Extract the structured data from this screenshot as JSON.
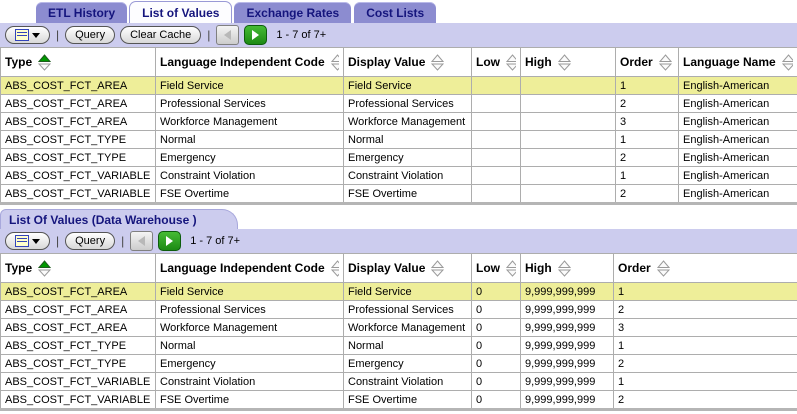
{
  "colors": {
    "tab_inactive_bg": "#8c8cd0",
    "tab_text": "#15157d",
    "toolbar_bg": "#ccccee",
    "row_highlight": "#eeee99",
    "sort_active_green": "#009900",
    "next_button_green": "#2a9a1e"
  },
  "tabs": [
    {
      "label": "ETL History",
      "active": false
    },
    {
      "label": "List of Values",
      "active": true
    },
    {
      "label": "Exchange Rates",
      "active": false
    },
    {
      "label": "Cost Lists",
      "active": false
    }
  ],
  "toolbar1": {
    "menu_icon": "menu-list-icon",
    "query_label": "Query",
    "clear_cache_label": "Clear Cache",
    "prev_icon": "previous-arrow-icon",
    "next_icon": "next-arrow-icon",
    "paging_text": "1 - 7 of 7+"
  },
  "table1": {
    "columns": [
      {
        "label": "Type",
        "sorted": "asc"
      },
      {
        "label": "Language Independent Code",
        "sorted": "none"
      },
      {
        "label": "Display Value",
        "sorted": "none"
      },
      {
        "label": "Low",
        "sorted": "none"
      },
      {
        "label": "High",
        "sorted": "none"
      },
      {
        "label": "Order",
        "sorted": "none"
      },
      {
        "label": "Language Name",
        "sorted": "none"
      }
    ],
    "highlighted_row": 0,
    "rows": [
      [
        "ABS_COST_FCT_AREA",
        "Field Service",
        "Field Service",
        "",
        "",
        "1",
        "English-American"
      ],
      [
        "ABS_COST_FCT_AREA",
        "Professional Services",
        "Professional Services",
        "",
        "",
        "2",
        "English-American"
      ],
      [
        "ABS_COST_FCT_AREA",
        "Workforce Management",
        "Workforce Management",
        "",
        "",
        "3",
        "English-American"
      ],
      [
        "ABS_COST_FCT_TYPE",
        "Normal",
        "Normal",
        "",
        "",
        "1",
        "English-American"
      ],
      [
        "ABS_COST_FCT_TYPE",
        "Emergency",
        "Emergency",
        "",
        "",
        "2",
        "English-American"
      ],
      [
        "ABS_COST_FCT_VARIABLE",
        "Constraint Violation",
        "Constraint Violation",
        "",
        "",
        "1",
        "English-American"
      ],
      [
        "ABS_COST_FCT_VARIABLE",
        "FSE Overtime",
        "FSE Overtime",
        "",
        "",
        "2",
        "English-American"
      ]
    ]
  },
  "section2": {
    "title": "List Of Values (Data Warehouse )",
    "toolbar": {
      "menu_icon": "menu-list-icon",
      "query_label": "Query",
      "prev_icon": "previous-arrow-icon",
      "next_icon": "next-arrow-icon",
      "paging_text": "1 - 7 of 7+"
    },
    "table": {
      "columns": [
        {
          "label": "Type",
          "sorted": "asc"
        },
        {
          "label": "Language Independent Code",
          "sorted": "none"
        },
        {
          "label": "Display Value",
          "sorted": "none"
        },
        {
          "label": "Low",
          "sorted": "none"
        },
        {
          "label": "High",
          "sorted": "none"
        },
        {
          "label": "Order",
          "sorted": "none"
        }
      ],
      "highlighted_row": 0,
      "rows": [
        [
          "ABS_COST_FCT_AREA",
          "Field Service",
          "Field Service",
          "0",
          "9,999,999,999",
          "1"
        ],
        [
          "ABS_COST_FCT_AREA",
          "Professional Services",
          "Professional Services",
          "0",
          "9,999,999,999",
          "2"
        ],
        [
          "ABS_COST_FCT_AREA",
          "Workforce Management",
          "Workforce Management",
          "0",
          "9,999,999,999",
          "3"
        ],
        [
          "ABS_COST_FCT_TYPE",
          "Normal",
          "Normal",
          "0",
          "9,999,999,999",
          "1"
        ],
        [
          "ABS_COST_FCT_TYPE",
          "Emergency",
          "Emergency",
          "0",
          "9,999,999,999",
          "2"
        ],
        [
          "ABS_COST_FCT_VARIABLE",
          "Constraint Violation",
          "Constraint Violation",
          "0",
          "9,999,999,999",
          "1"
        ],
        [
          "ABS_COST_FCT_VARIABLE",
          "FSE Overtime",
          "FSE Overtime",
          "0",
          "9,999,999,999",
          "2"
        ]
      ]
    }
  }
}
